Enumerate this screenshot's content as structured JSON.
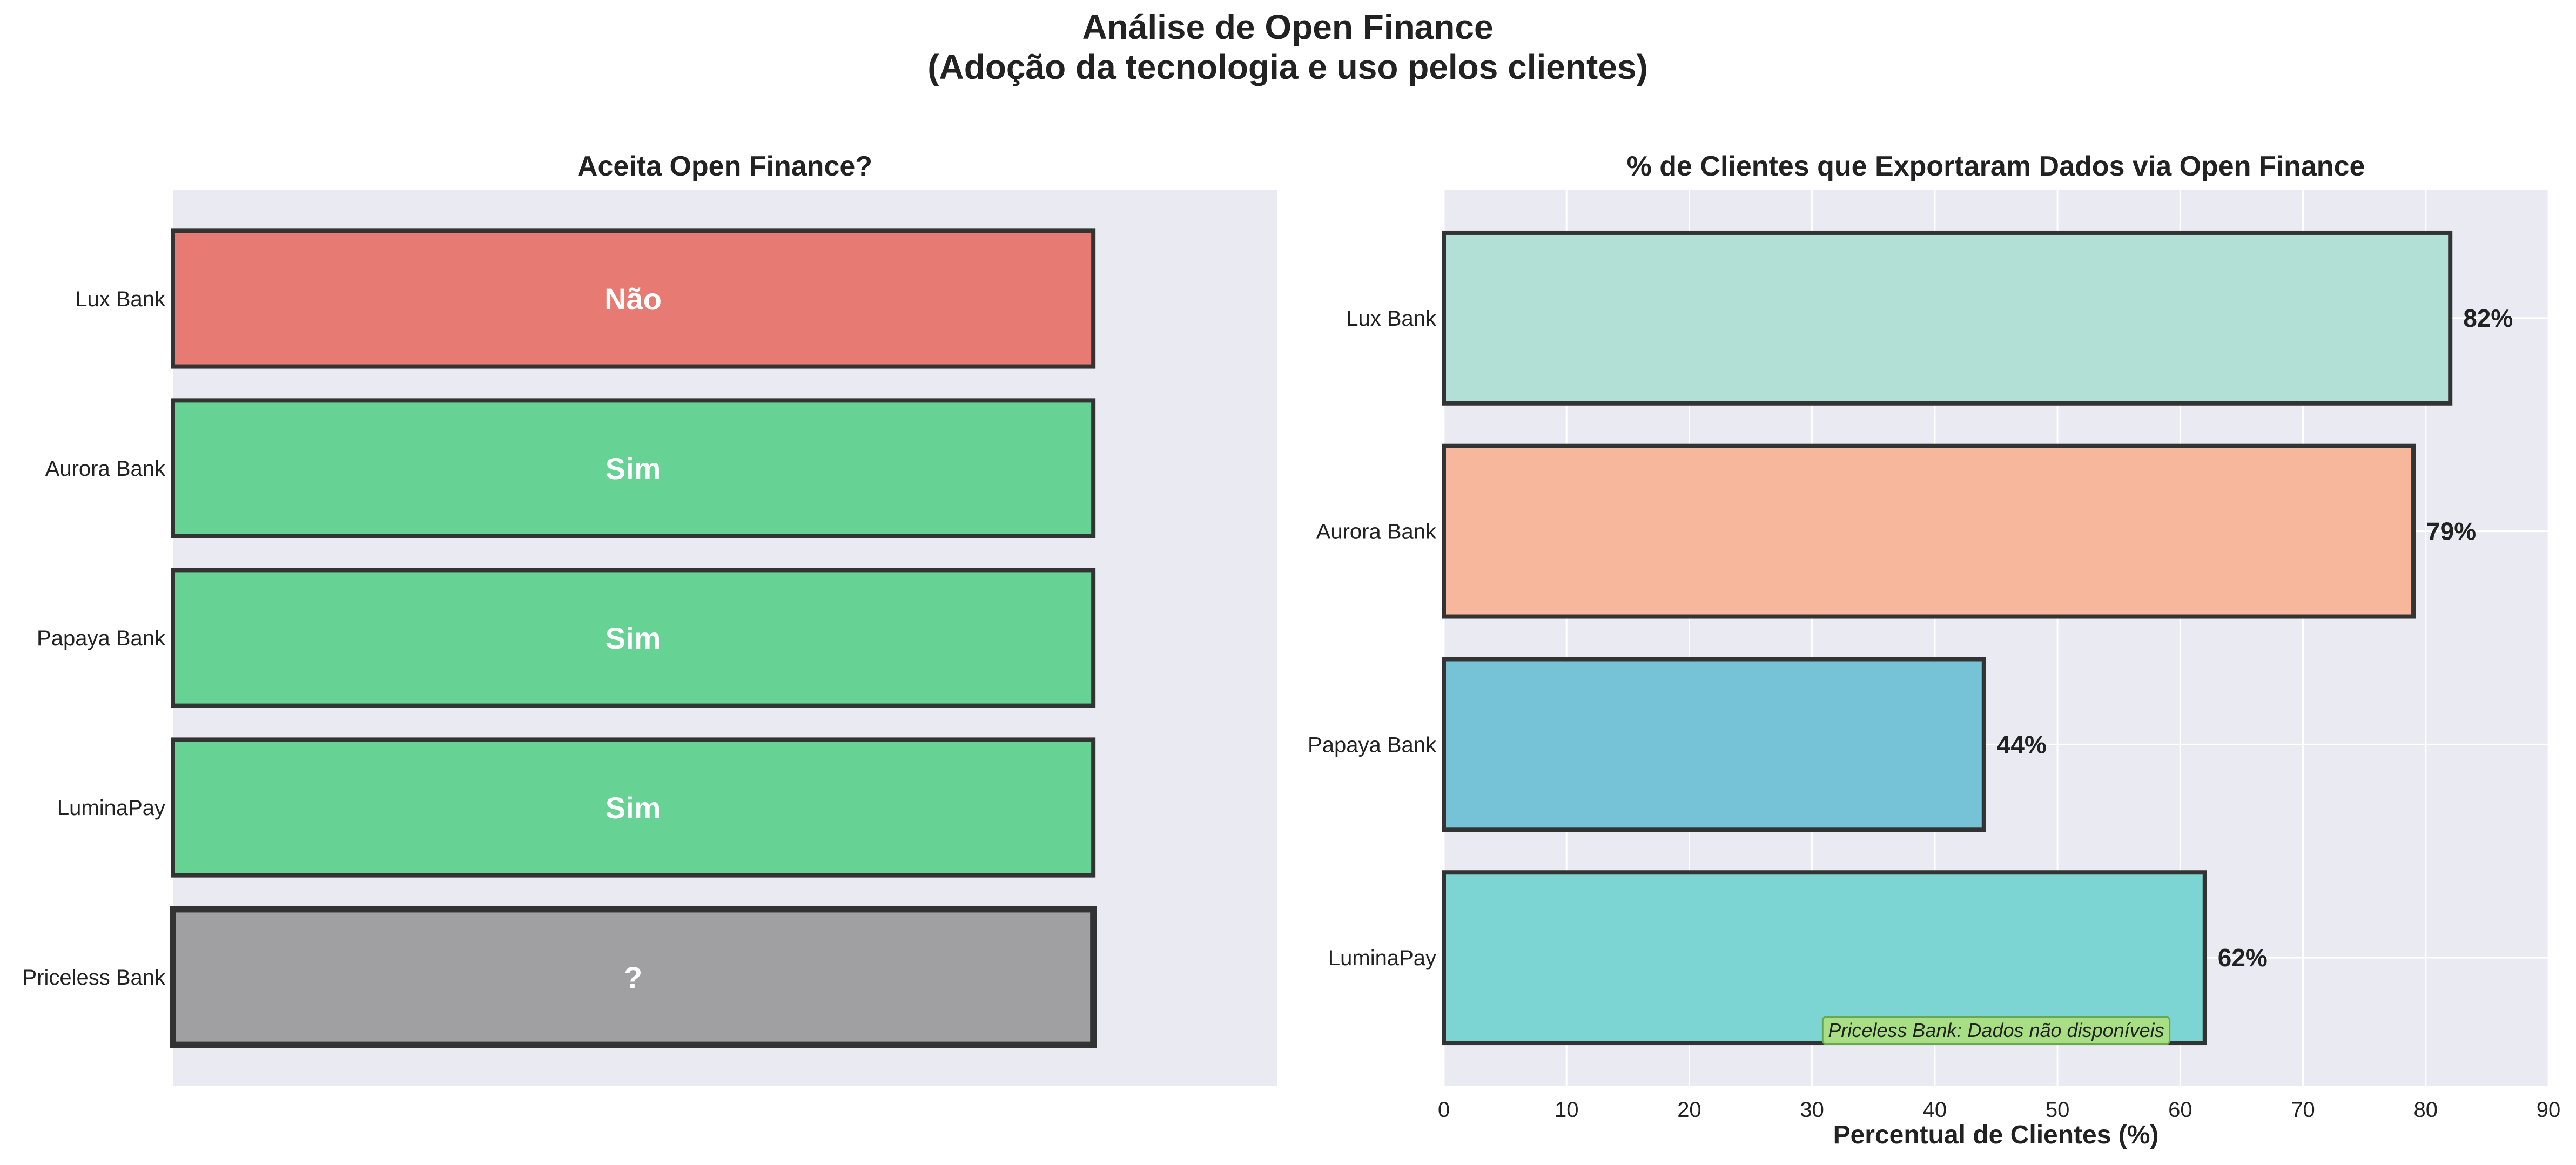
{
  "suptitle": {
    "line1": "Análise de Open Finance",
    "line2": "(Adoção da tecnologia e uso pelos clientes)"
  },
  "colors": {
    "panel_bg": "#eaeaf2",
    "grid": "#ffffff",
    "edge": "#333333",
    "nao": "#e77b73",
    "sim": "#66d395",
    "unknown": "#a0a0a2",
    "note_bg": "#a8df85",
    "note_edge": "#6aa84f"
  },
  "chart_data": [
    {
      "type": "bar",
      "orientation": "horizontal",
      "title": "Aceita Open Finance?",
      "categories": [
        "Lux Bank",
        "Aurora Bank",
        "Papaya Bank",
        "LuminaPay",
        "Priceless Bank"
      ],
      "values": [
        1,
        1,
        1,
        1,
        1
      ],
      "bar_labels": [
        "Não",
        "Sim",
        "Sim",
        "Sim",
        "?"
      ],
      "bar_colors": [
        "nao",
        "sim",
        "sim",
        "sim",
        "unknown"
      ],
      "xlim": [
        0,
        1.2
      ],
      "xaxis_visible": false,
      "grid": false
    },
    {
      "type": "bar",
      "orientation": "horizontal",
      "title": "% de Clientes que Exportaram Dados via Open Finance",
      "categories": [
        "Lux Bank",
        "Aurora Bank",
        "Papaya Bank",
        "LuminaPay"
      ],
      "values": [
        82,
        79,
        44,
        62
      ],
      "value_labels": [
        "82%",
        "79%",
        "44%",
        "62%"
      ],
      "bar_colors": [
        "#b2dfd6",
        "#f7b79c",
        "#76c3d7",
        "#7dd5d3"
      ],
      "xlabel": "Percentual de Clientes (%)",
      "xlim": [
        0,
        90
      ],
      "xticks": [
        0,
        10,
        20,
        30,
        40,
        50,
        60,
        70,
        80,
        90
      ],
      "grid": true,
      "annotation": {
        "text": "Priceless Bank: Dados não disponíveis",
        "x": 45
      }
    }
  ]
}
